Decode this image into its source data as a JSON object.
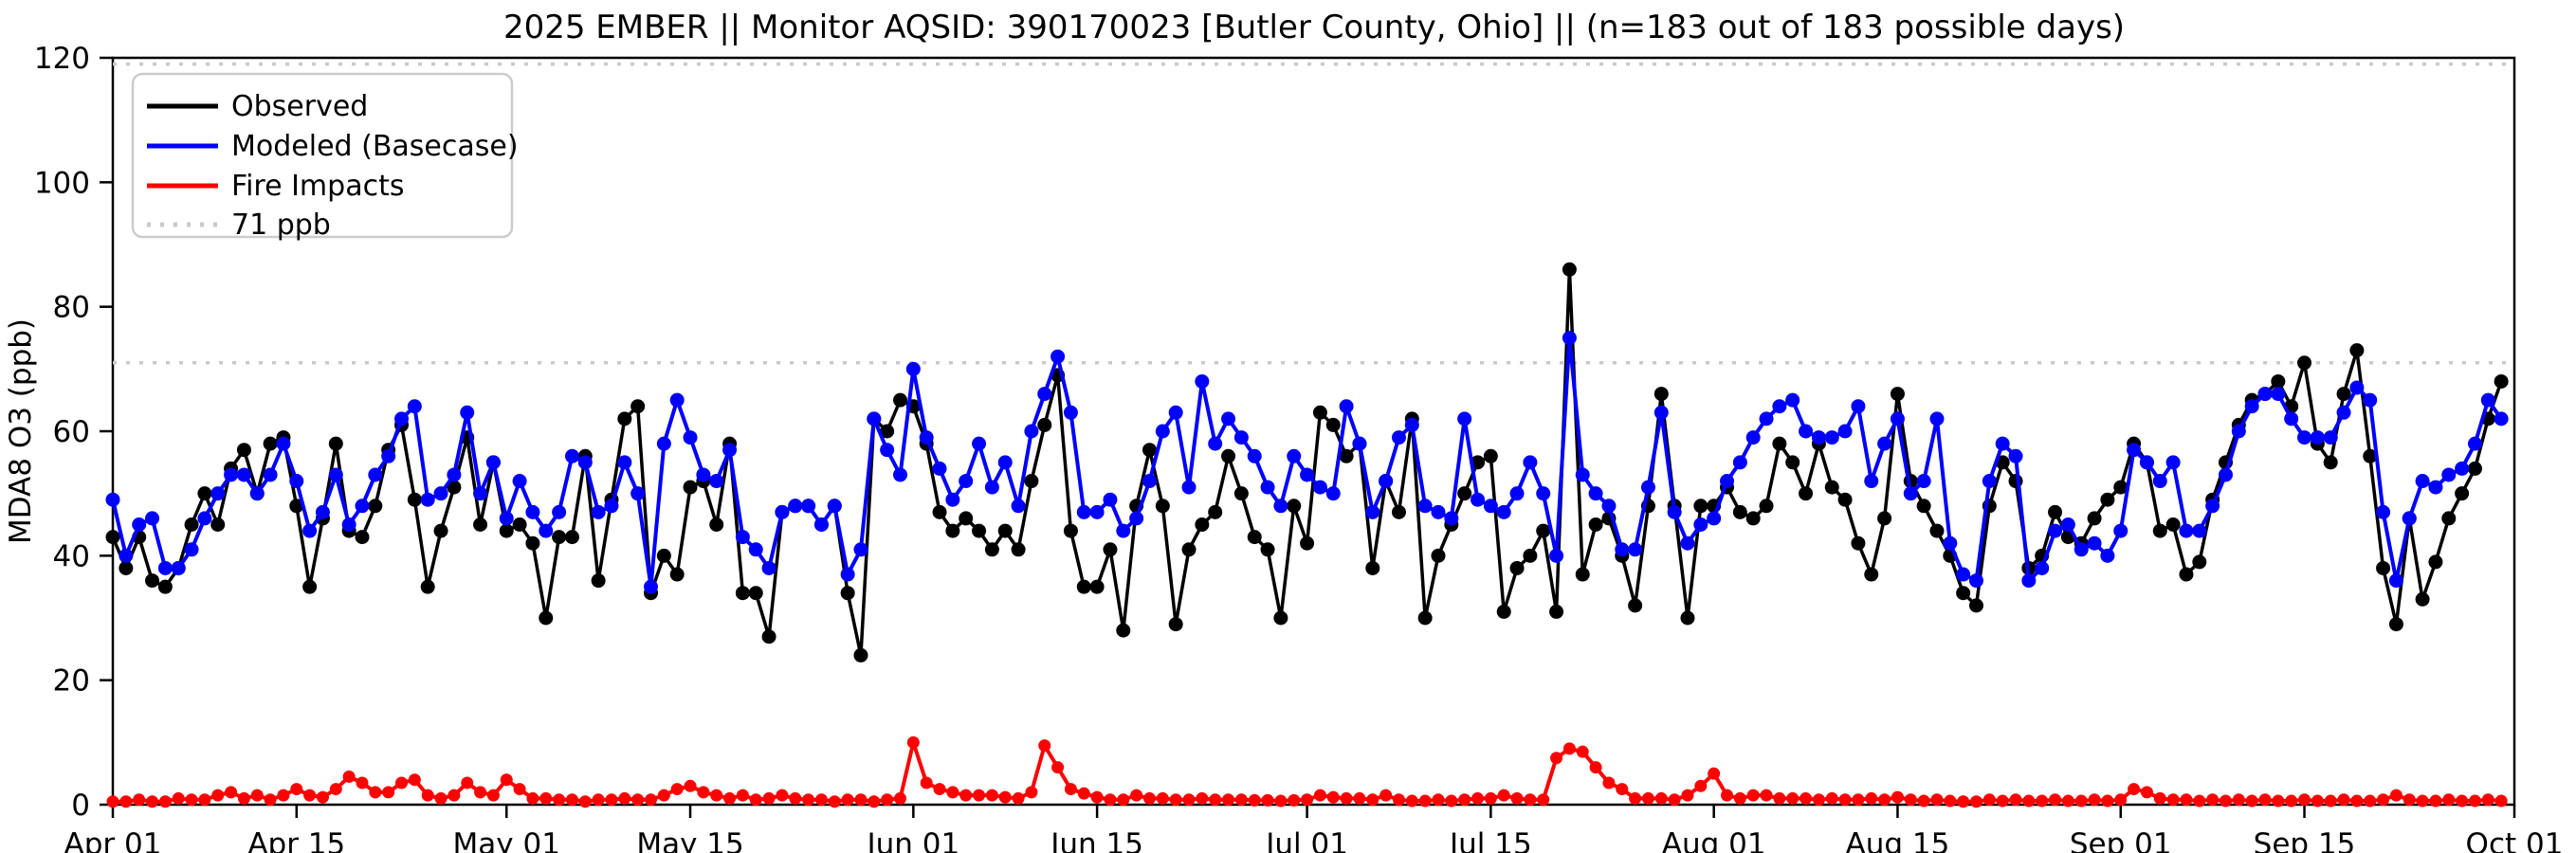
{
  "title": "2025 EMBER || Monitor AQSID: 390170023 [Butler County, Ohio] || (n=183 out of 183 possible days)",
  "legend": {
    "items": [
      {
        "label": "Observed",
        "color": "#000000",
        "style": "solid"
      },
      {
        "label": "Modeled (Basecase)",
        "color": "#0000ff",
        "style": "solid"
      },
      {
        "label": "Fire Impacts",
        "color": "#ff0000",
        "style": "solid"
      },
      {
        "label": "71 ppb",
        "color": "#c9c9c9",
        "style": "dotted"
      }
    ]
  },
  "chart_data": {
    "type": "line",
    "title": "2025 EMBER || Monitor AQSID: 390170023 [Butler County, Ohio] || (n=183 out of 183 possible days)",
    "xlabel": "",
    "ylabel": "MDA8 O3 (ppb)",
    "ylim": [
      0,
      120
    ],
    "yticks": [
      0,
      20,
      40,
      60,
      80,
      100,
      120
    ],
    "xtick_labels": [
      "Apr 01",
      "Apr 15",
      "May 01",
      "May 15",
      "Jun 01",
      "Jun 15",
      "Jul 01",
      "Jul 15",
      "Aug 01",
      "Aug 15",
      "Sep 01",
      "Sep 15",
      "Oct 01"
    ],
    "xtick_days": [
      0,
      14,
      30,
      44,
      61,
      75,
      91,
      105,
      122,
      136,
      153,
      167,
      183
    ],
    "n_days": 183,
    "date_range": [
      "Apr 01",
      "Sep 30"
    ],
    "threshold_ppb": 71,
    "upper_dotted_ppb": 119,
    "grid": false,
    "legend_position": "upper left",
    "series": [
      {
        "name": "Observed",
        "color": "#000000",
        "values": [
          43,
          38,
          43,
          36,
          35,
          38,
          45,
          50,
          45,
          54,
          57,
          50,
          58,
          59,
          48,
          35,
          46,
          58,
          44,
          43,
          48,
          57,
          61,
          49,
          35,
          44,
          51,
          59,
          45,
          55,
          44,
          45,
          42,
          30,
          43,
          43,
          56,
          36,
          49,
          62,
          64,
          34,
          40,
          37,
          51,
          52,
          45,
          58,
          34,
          34,
          27,
          47,
          48,
          48,
          45,
          48,
          34,
          24,
          62,
          60,
          65,
          64,
          58,
          47,
          44,
          46,
          44,
          41,
          44,
          41,
          52,
          61,
          69,
          44,
          35,
          35,
          41,
          28,
          48,
          57,
          48,
          29,
          41,
          45,
          47,
          56,
          50,
          43,
          41,
          30,
          48,
          42,
          63,
          61,
          56,
          58,
          38,
          52,
          47,
          62,
          30,
          40,
          45,
          50,
          55,
          56,
          31,
          38,
          40,
          44,
          31,
          86,
          37,
          45,
          46,
          40,
          32,
          48,
          66,
          48,
          30,
          48,
          48,
          51,
          47,
          46,
          48,
          58,
          55,
          50,
          58,
          51,
          49,
          42,
          37,
          46,
          66,
          52,
          48,
          44,
          40,
          34,
          32,
          48,
          55,
          52,
          38,
          40,
          47,
          43,
          42,
          46,
          49,
          51,
          58,
          55,
          44,
          45,
          37,
          39,
          49,
          55,
          61,
          65,
          66,
          68,
          64,
          71,
          58,
          55,
          66,
          73,
          56,
          38,
          29,
          46,
          33,
          39,
          46,
          50,
          54,
          62,
          68
        ]
      },
      {
        "name": "Modeled (Basecase)",
        "color": "#0000ff",
        "values": [
          49,
          40,
          45,
          46,
          38,
          38,
          41,
          46,
          50,
          53,
          53,
          50,
          53,
          58,
          52,
          44,
          47,
          53,
          45,
          48,
          53,
          56,
          62,
          64,
          49,
          50,
          53,
          63,
          50,
          55,
          46,
          52,
          47,
          44,
          47,
          56,
          55,
          47,
          48,
          55,
          50,
          35,
          58,
          65,
          59,
          53,
          52,
          57,
          43,
          41,
          38,
          47,
          48,
          48,
          45,
          48,
          37,
          41,
          62,
          57,
          53,
          70,
          59,
          54,
          49,
          52,
          58,
          51,
          55,
          48,
          60,
          66,
          72,
          63,
          47,
          47,
          49,
          44,
          46,
          52,
          60,
          63,
          51,
          68,
          58,
          62,
          59,
          56,
          51,
          48,
          56,
          53,
          51,
          50,
          64,
          58,
          47,
          52,
          59,
          61,
          48,
          47,
          46,
          62,
          49,
          48,
          47,
          50,
          55,
          50,
          40,
          75,
          53,
          50,
          48,
          41,
          41,
          51,
          63,
          47,
          42,
          45,
          46,
          52,
          55,
          59,
          62,
          64,
          65,
          60,
          59,
          59,
          60,
          64,
          52,
          58,
          62,
          50,
          52,
          62,
          42,
          37,
          36,
          52,
          58,
          56,
          36,
          38,
          44,
          45,
          41,
          42,
          40,
          44,
          57,
          55,
          52,
          55,
          44,
          44,
          48,
          53,
          60,
          64,
          66,
          66,
          62,
          59,
          59,
          59,
          63,
          67,
          65,
          47,
          36,
          46,
          52,
          51,
          53,
          54,
          58,
          65,
          62
        ]
      },
      {
        "name": "Fire Impacts",
        "color": "#ff0000",
        "values": [
          0.5,
          0.5,
          0.8,
          0.5,
          0.5,
          1,
          0.8,
          0.8,
          1.5,
          2,
          1,
          1.5,
          0.8,
          1.5,
          2.5,
          1.5,
          1.2,
          2.5,
          4.5,
          3.5,
          2,
          2,
          3.5,
          4,
          1.5,
          1,
          1.5,
          3.5,
          2,
          1.5,
          4,
          2.5,
          1,
          1,
          0.8,
          0.8,
          0.5,
          0.8,
          0.8,
          1,
          0.8,
          0.8,
          1.5,
          2.5,
          3,
          2,
          1.5,
          1,
          1.5,
          0.8,
          1,
          1.5,
          1,
          0.8,
          0.8,
          0.5,
          0.8,
          0.8,
          0.5,
          0.8,
          1,
          10,
          3.5,
          2.5,
          2,
          1.5,
          1.5,
          1.5,
          1.2,
          1,
          2,
          9.5,
          6,
          2.5,
          1.8,
          1.2,
          0.8,
          0.8,
          1.5,
          1,
          1,
          0.8,
          0.8,
          1,
          0.8,
          0.8,
          0.8,
          0.7,
          0.7,
          0.6,
          0.7,
          0.8,
          1.5,
          1.2,
          1,
          1,
          0.8,
          1.5,
          0.8,
          0.6,
          0.6,
          0.8,
          0.6,
          0.8,
          1,
          1,
          1.5,
          1,
          0.8,
          0.8,
          7.5,
          9,
          8.5,
          6,
          3.5,
          2.5,
          1,
          1,
          1,
          0.8,
          1.5,
          3,
          5,
          1.5,
          1,
          1.5,
          1.5,
          1,
          1,
          1,
          0.8,
          1,
          0.8,
          0.8,
          1,
          0.8,
          1.2,
          0.8,
          0.6,
          0.8,
          0.6,
          0.5,
          0.5,
          0.8,
          0.6,
          0.8,
          0.6,
          0.6,
          0.8,
          0.6,
          0.6,
          0.8,
          0.6,
          0.8,
          2.5,
          2,
          1,
          0.8,
          0.8,
          0.6,
          0.8,
          0.6,
          0.8,
          0.6,
          0.8,
          0.6,
          0.6,
          0.8,
          0.6,
          0.6,
          0.8,
          0.6,
          0.6,
          0.8,
          1.5,
          0.8,
          0.6,
          0.6,
          0.8,
          0.6,
          0.6,
          0.8,
          0.6
        ]
      }
    ]
  }
}
